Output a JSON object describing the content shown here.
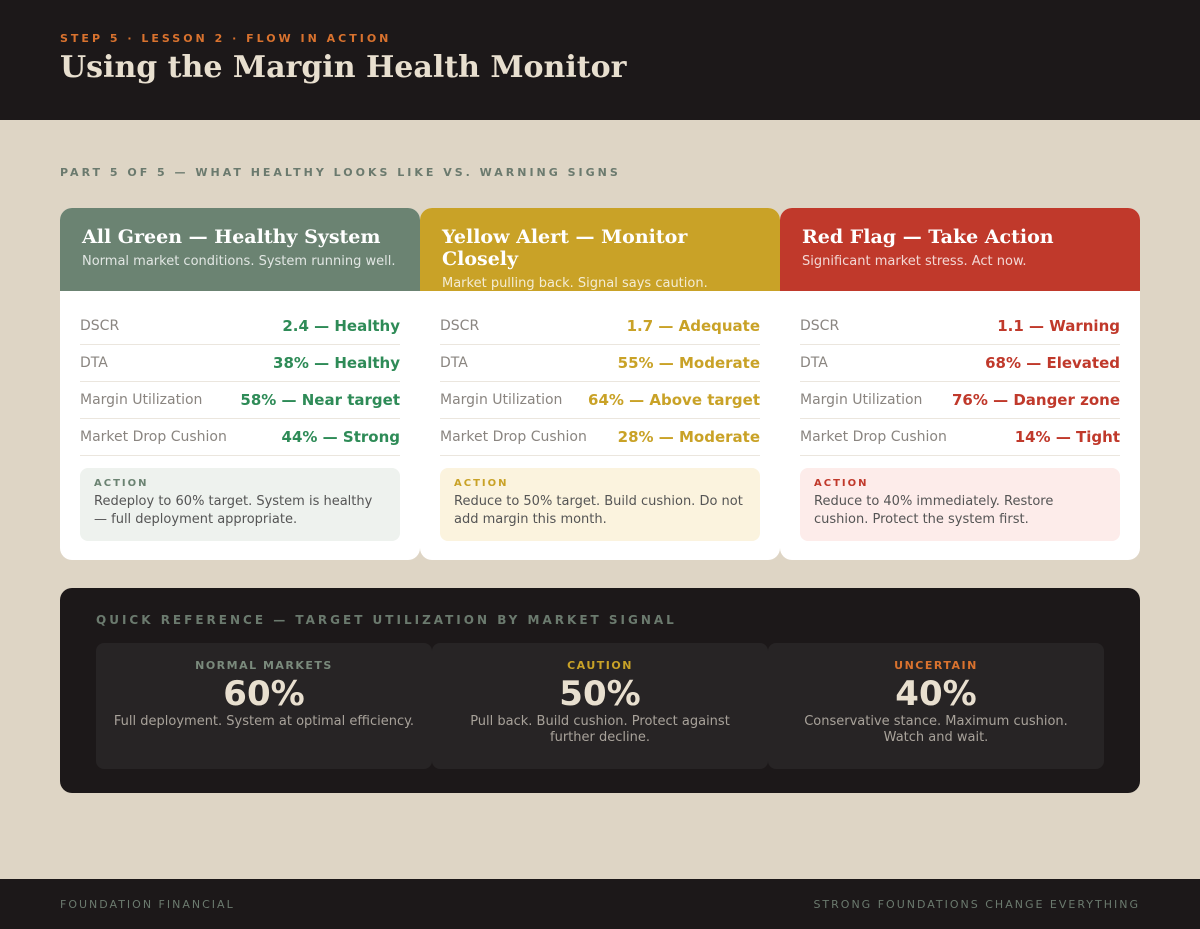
{
  "header": {
    "eyebrow": "STEP 5 · LESSON 2 · FLOW IN ACTION",
    "title": "Using the Margin Health Monitor"
  },
  "section_label": "PART 5 OF 5 — WHAT HEALTHY LOOKS LIKE VS. WARNING SIGNS",
  "cards": [
    {
      "title": "All Green — Healthy System",
      "subtitle": "Normal market conditions. System running well.",
      "rows": [
        {
          "label": "DSCR",
          "value": "2.4 — Healthy"
        },
        {
          "label": "DTA",
          "value": "38% — Healthy"
        },
        {
          "label": "Margin Utilization",
          "value": "58% — Near target"
        },
        {
          "label": "Market Drop Cushion",
          "value": "44% — Strong"
        }
      ],
      "action_label": "ACTION",
      "action_text": "Redeploy to 60% target. System is healthy — full deployment appropriate."
    },
    {
      "title": "Yellow Alert — Monitor Closely",
      "subtitle": "Market pulling back. Signal says caution.",
      "rows": [
        {
          "label": "DSCR",
          "value": "1.7 — Adequate"
        },
        {
          "label": "DTA",
          "value": "55% — Moderate"
        },
        {
          "label": "Margin Utilization",
          "value": "64% — Above target"
        },
        {
          "label": "Market Drop Cushion",
          "value": "28% — Moderate"
        }
      ],
      "action_label": "ACTION",
      "action_text": "Reduce to 50% target. Build cushion. Do not add margin this month."
    },
    {
      "title": "Red Flag — Take Action",
      "subtitle": "Significant market stress. Act now.",
      "rows": [
        {
          "label": "DSCR",
          "value": "1.1 — Warning"
        },
        {
          "label": "DTA",
          "value": "68% — Elevated"
        },
        {
          "label": "Margin Utilization",
          "value": "76% — Danger zone"
        },
        {
          "label": "Market Drop Cushion",
          "value": "14% — Tight"
        }
      ],
      "action_label": "ACTION",
      "action_text": "Reduce to 40% immediately. Restore cushion. Protect the system first."
    }
  ],
  "quick_reference": {
    "title": "QUICK REFERENCE — TARGET UTILIZATION BY MARKET SIGNAL",
    "items": [
      {
        "label": "NORMAL MARKETS",
        "value": "60%",
        "text": "Full deployment. System at optimal efficiency."
      },
      {
        "label": "CAUTION",
        "value": "50%",
        "text": "Pull back. Build cushion. Protect against further decline."
      },
      {
        "label": "UNCERTAIN",
        "value": "40%",
        "text": "Conservative stance. Maximum cushion. Watch and wait."
      }
    ]
  },
  "footer": {
    "left": "FOUNDATION FINANCIAL",
    "right": "STRONG FOUNDATIONS CHANGE EVERYTHING"
  }
}
